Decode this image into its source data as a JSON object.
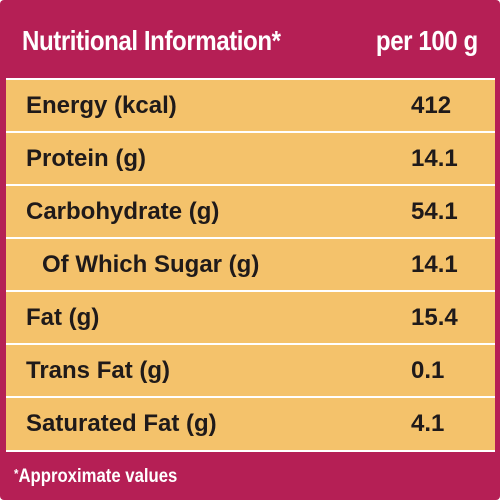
{
  "header": {
    "title": "Nutritional Information*",
    "per": "per 100 g"
  },
  "rows": [
    {
      "name": "Energy (kcal)",
      "value": "412"
    },
    {
      "name": "Protein (g)",
      "value": "14.1"
    },
    {
      "name": "Carbohydrate (g)",
      "value": "54.1"
    },
    {
      "name": "Of Which Sugar (g)",
      "value": "14.1"
    },
    {
      "name": "Fat (g)",
      "value": "15.4"
    },
    {
      "name": "Trans Fat (g)",
      "value": "0.1"
    },
    {
      "name": "Saturated Fat (g)",
      "value": "4.1"
    }
  ],
  "footer": {
    "asterisk": "*",
    "note": "Approximate values"
  },
  "colors": {
    "panel": "#b51f55",
    "table": "#f4c26b",
    "divider": "#ffffff",
    "text": "#1f1a1a"
  }
}
